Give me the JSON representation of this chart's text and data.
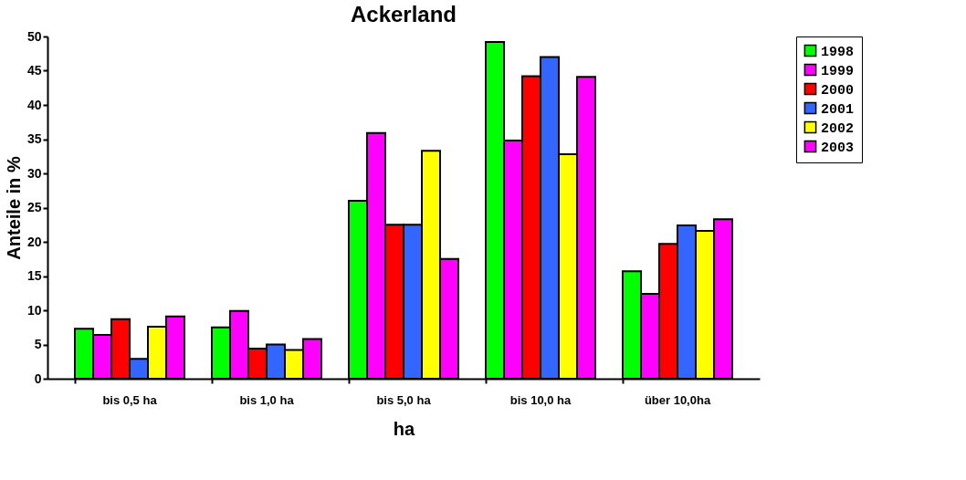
{
  "chart_data": {
    "type": "bar",
    "title": "Ackerland",
    "xlabel": "ha",
    "ylabel": "Anteile in %",
    "categories": [
      "bis 0,5 ha",
      "bis 1,0 ha",
      "bis 5,0 ha",
      "bis 10,0 ha",
      "über 10,0ha"
    ],
    "series": [
      {
        "name": "1998",
        "color": "#00ff00",
        "values": [
          7.3,
          7.5,
          26.0,
          49.2,
          15.7
        ]
      },
      {
        "name": "1999",
        "color": "#ff00ff",
        "values": [
          6.4,
          9.9,
          35.9,
          34.8,
          12.4
        ]
      },
      {
        "name": "2000",
        "color": "#ff0000",
        "values": [
          8.7,
          4.4,
          22.5,
          44.2,
          19.7
        ]
      },
      {
        "name": "2001",
        "color": "#3366ff",
        "values": [
          2.9,
          5.0,
          22.5,
          47.0,
          22.4
        ]
      },
      {
        "name": "2002",
        "color": "#ffff00",
        "values": [
          7.6,
          4.2,
          33.3,
          32.8,
          21.6
        ]
      },
      {
        "name": "2003",
        "color": "#ff00ff",
        "values": [
          9.1,
          5.8,
          17.5,
          44.1,
          23.3
        ]
      }
    ],
    "ylim": [
      0,
      50
    ],
    "yticks": [
      0,
      5,
      10,
      15,
      20,
      25,
      30,
      35,
      40,
      45,
      50
    ],
    "grid": false,
    "legend": "top right"
  }
}
